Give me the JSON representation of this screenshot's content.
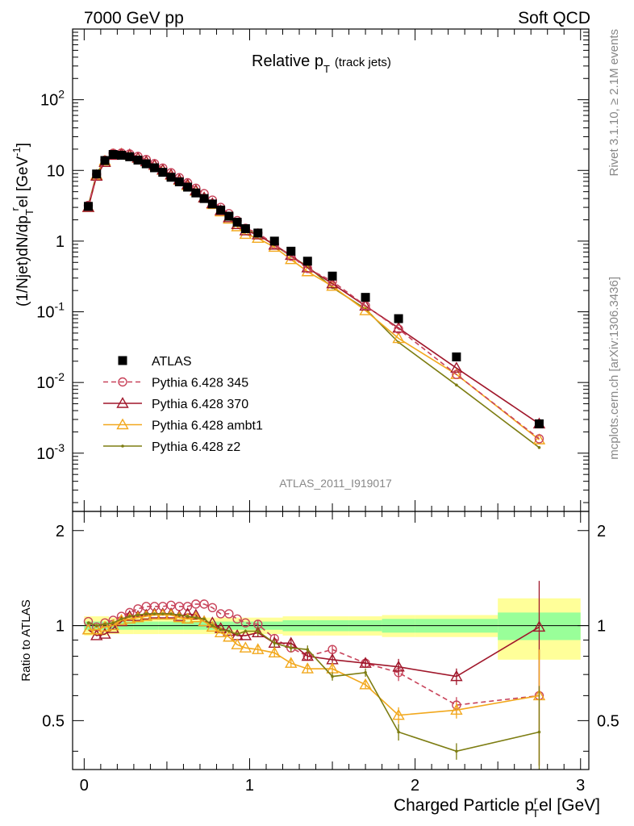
{
  "header": {
    "left": "7000 GeV pp",
    "right": "Soft QCD"
  },
  "side_text": {
    "rivet": "Rivet 3.1.10, ≥ 2.1M events",
    "mcplots": "mcplots.cern.ch [arXiv:1306.3436]"
  },
  "chart_data": [
    {
      "type": "scatter",
      "panel": "main",
      "title": "Relative p_T (track jets)",
      "title_main": "Relative p",
      "title_sub": "T",
      "title_extra": "(track jets)",
      "watermark": "ATLAS_2011_I919017",
      "ylabel": "(1/Njet)dN/dp_T^rel [GeV^-1]",
      "ylabel_parts": {
        "a": "(1/Njet)dN/dp",
        "sub": "T",
        "sup": "r",
        "b": "el [GeV",
        "sup2": "-1",
        "c": "]"
      },
      "xlim": [
        -0.07,
        3.05
      ],
      "ylim": [
        0.00015,
        1000
      ],
      "log_y": true,
      "grid": false,
      "legend_position": "bottom-left",
      "xticks": [
        0,
        1,
        2,
        3
      ],
      "yticks": [
        {
          "value": 0.001,
          "base": "10",
          "exp": "-3"
        },
        {
          "value": 0.01,
          "base": "10",
          "exp": "-2"
        },
        {
          "value": 0.1,
          "base": "10",
          "exp": "-1"
        },
        {
          "value": 1,
          "base": "1",
          "exp": ""
        },
        {
          "value": 10,
          "base": "10",
          "exp": ""
        },
        {
          "value": 100,
          "base": "10",
          "exp": "2"
        }
      ],
      "series": [
        {
          "name": "ATLAS",
          "color": "#000000",
          "marker": "square",
          "line": "none",
          "x": [
            0.025,
            0.075,
            0.125,
            0.175,
            0.225,
            0.275,
            0.325,
            0.375,
            0.425,
            0.475,
            0.525,
            0.575,
            0.625,
            0.675,
            0.725,
            0.775,
            0.825,
            0.875,
            0.925,
            0.975,
            1.05,
            1.15,
            1.25,
            1.35,
            1.5,
            1.7,
            1.9,
            2.25,
            2.75
          ],
          "y": [
            3.1,
            8.9,
            13.8,
            16.8,
            16.4,
            15.6,
            14.0,
            12.4,
            10.9,
            9.4,
            8.0,
            6.9,
            5.8,
            4.8,
            4.0,
            3.35,
            2.75,
            2.25,
            1.85,
            1.5,
            1.3,
            1.0,
            0.72,
            0.52,
            0.32,
            0.16,
            0.08,
            0.023,
            0.0026
          ]
        },
        {
          "name": "Pythia 6.428 345",
          "color": "#c8435a",
          "marker": "circle",
          "line": "dashed",
          "x": [
            0.025,
            0.075,
            0.125,
            0.175,
            0.225,
            0.275,
            0.325,
            0.375,
            0.425,
            0.475,
            0.525,
            0.575,
            0.625,
            0.675,
            0.725,
            0.775,
            0.825,
            0.875,
            0.925,
            0.975,
            1.05,
            1.15,
            1.25,
            1.35,
            1.5,
            1.7,
            1.9,
            2.25,
            2.75
          ],
          "y": [
            3.2,
            8.8,
            14.0,
            17.5,
            17.6,
            17.1,
            15.8,
            14.3,
            12.5,
            10.8,
            9.3,
            7.9,
            6.7,
            5.6,
            4.7,
            3.8,
            3.0,
            2.45,
            1.95,
            1.52,
            1.3,
            0.9,
            0.61,
            0.41,
            0.27,
            0.122,
            0.057,
            0.013,
            0.0016
          ]
        },
        {
          "name": "Pythia 6.428 370",
          "color": "#a0172b",
          "marker": "triangle-open",
          "line": "solid",
          "x": [
            0.025,
            0.075,
            0.125,
            0.175,
            0.225,
            0.275,
            0.325,
            0.375,
            0.425,
            0.475,
            0.525,
            0.575,
            0.625,
            0.675,
            0.725,
            0.775,
            0.825,
            0.875,
            0.925,
            0.975,
            1.05,
            1.15,
            1.25,
            1.35,
            1.5,
            1.7,
            1.9,
            2.25,
            2.75
          ],
          "y": [
            3.0,
            8.3,
            13.0,
            16.4,
            16.9,
            16.7,
            15.0,
            13.4,
            11.9,
            10.2,
            8.7,
            7.4,
            6.3,
            5.2,
            4.1,
            3.4,
            2.7,
            2.15,
            1.72,
            1.4,
            1.23,
            0.88,
            0.63,
            0.42,
            0.25,
            0.121,
            0.059,
            0.016,
            0.0026
          ]
        },
        {
          "name": "Pythia 6.428 ambt1",
          "color": "#f2a81d",
          "marker": "triangle-open",
          "line": "solid",
          "x": [
            0.025,
            0.075,
            0.125,
            0.175,
            0.225,
            0.275,
            0.325,
            0.375,
            0.425,
            0.475,
            0.525,
            0.575,
            0.625,
            0.675,
            0.725,
            0.775,
            0.825,
            0.875,
            0.925,
            0.975,
            1.05,
            1.15,
            1.25,
            1.35,
            1.5,
            1.7,
            1.9,
            2.25,
            2.75
          ],
          "y": [
            3.0,
            8.6,
            13.6,
            16.8,
            17.1,
            16.4,
            14.9,
            13.3,
            11.8,
            10.1,
            8.6,
            7.3,
            6.1,
            5.1,
            4.1,
            3.3,
            2.6,
            2.05,
            1.6,
            1.25,
            1.1,
            0.82,
            0.55,
            0.37,
            0.23,
            0.104,
            0.042,
            0.013,
            0.00155
          ]
        },
        {
          "name": "Pythia 6.428 z2",
          "color": "#7d7d12",
          "marker": "dot",
          "line": "solid",
          "x": [
            0.025,
            0.075,
            0.125,
            0.175,
            0.225,
            0.275,
            0.325,
            0.375,
            0.425,
            0.475,
            0.525,
            0.575,
            0.625,
            0.675,
            0.725,
            0.775,
            0.825,
            0.875,
            0.925,
            0.975,
            1.05,
            1.15,
            1.25,
            1.35,
            1.5,
            1.7,
            1.9,
            2.25,
            2.75
          ],
          "y": [
            3.2,
            8.9,
            14.0,
            17.3,
            17.2,
            16.6,
            15.2,
            13.5,
            11.9,
            10.2,
            8.7,
            7.4,
            6.2,
            5.1,
            4.2,
            3.4,
            2.7,
            2.15,
            1.75,
            1.45,
            1.25,
            0.88,
            0.61,
            0.44,
            0.22,
            0.11,
            0.037,
            0.0092,
            0.0012
          ]
        }
      ]
    },
    {
      "type": "line",
      "panel": "ratio",
      "ylabel": "Ratio to ATLAS",
      "xlabel": "Charged Particle p_T^rel [GeV]",
      "xlabel_parts": {
        "a": "Charged Particle p",
        "sup": "r",
        "sub": "T",
        "b": "el [GeV]"
      },
      "xlim": [
        -0.07,
        3.05
      ],
      "ylim": [
        0.35,
        2.3
      ],
      "log_y": true,
      "grid": false,
      "xticks": [
        0,
        1,
        2,
        3
      ],
      "yticks": [
        {
          "value": 0.5,
          "label": "0.5"
        },
        {
          "value": 1,
          "label": "1"
        },
        {
          "value": 2,
          "label": "2"
        }
      ],
      "bands": {
        "edges": [
          0,
          0.15,
          0.3,
          0.45,
          0.6,
          0.8,
          1.0,
          1.2,
          1.4,
          1.6,
          1.8,
          2.0,
          2.5,
          3.0
        ],
        "yellow": [
          0.07,
          0.06,
          0.06,
          0.06,
          0.06,
          0.06,
          0.06,
          0.07,
          0.07,
          0.07,
          0.08,
          0.08,
          0.22
        ],
        "green": [
          0.03,
          0.03,
          0.03,
          0.03,
          0.03,
          0.03,
          0.03,
          0.04,
          0.04,
          0.04,
          0.05,
          0.05,
          0.1
        ]
      },
      "series": [
        {
          "name": "Pythia 6.428 345",
          "x": [
            0.025,
            0.075,
            0.125,
            0.175,
            0.225,
            0.275,
            0.325,
            0.375,
            0.425,
            0.475,
            0.525,
            0.575,
            0.625,
            0.675,
            0.725,
            0.775,
            0.825,
            0.875,
            0.925,
            0.975,
            1.05,
            1.15,
            1.25,
            1.35,
            1.5,
            1.7,
            1.9,
            2.25,
            2.75
          ],
          "y": [
            1.03,
            0.99,
            1.02,
            1.04,
            1.07,
            1.1,
            1.13,
            1.15,
            1.15,
            1.15,
            1.16,
            1.15,
            1.15,
            1.17,
            1.17,
            1.14,
            1.09,
            1.09,
            1.05,
            1.02,
            1.01,
            0.91,
            0.85,
            0.8,
            0.84,
            0.76,
            0.71,
            0.56,
            0.6
          ]
        },
        {
          "name": "Pythia 6.428 370",
          "x": [
            0.025,
            0.075,
            0.125,
            0.175,
            0.225,
            0.275,
            0.325,
            0.375,
            0.425,
            0.475,
            0.525,
            0.575,
            0.625,
            0.675,
            0.725,
            0.775,
            0.825,
            0.875,
            0.925,
            0.975,
            1.05,
            1.15,
            1.25,
            1.35,
            1.5,
            1.7,
            1.9,
            2.25,
            2.75
          ],
          "y": [
            0.97,
            0.93,
            0.94,
            0.98,
            1.03,
            1.07,
            1.07,
            1.08,
            1.09,
            1.09,
            1.09,
            1.07,
            1.09,
            1.08,
            1.03,
            1.02,
            0.98,
            0.96,
            0.93,
            0.93,
            0.95,
            0.88,
            0.88,
            0.8,
            0.78,
            0.76,
            0.74,
            0.69,
            0.99
          ]
        },
        {
          "name": "Pythia 6.428 ambt1",
          "x": [
            0.025,
            0.075,
            0.125,
            0.175,
            0.225,
            0.275,
            0.325,
            0.375,
            0.425,
            0.475,
            0.525,
            0.575,
            0.625,
            0.675,
            0.725,
            0.775,
            0.825,
            0.875,
            0.925,
            0.975,
            1.05,
            1.15,
            1.25,
            1.35,
            1.5,
            1.7,
            1.9,
            2.25,
            2.75
          ],
          "y": [
            0.97,
            0.97,
            0.99,
            1.0,
            1.04,
            1.05,
            1.06,
            1.07,
            1.08,
            1.08,
            1.08,
            1.06,
            1.05,
            1.06,
            1.03,
            0.99,
            0.95,
            0.92,
            0.87,
            0.85,
            0.84,
            0.82,
            0.76,
            0.73,
            0.73,
            0.65,
            0.52,
            0.54,
            0.6
          ]
        },
        {
          "name": "Pythia 6.428 z2",
          "x": [
            0.025,
            0.075,
            0.125,
            0.175,
            0.225,
            0.275,
            0.325,
            0.375,
            0.425,
            0.475,
            0.525,
            0.575,
            0.625,
            0.675,
            0.725,
            0.775,
            0.825,
            0.875,
            0.925,
            0.975,
            1.05,
            1.15,
            1.25,
            1.35,
            1.5,
            1.7,
            1.9,
            2.25,
            2.75
          ],
          "y": [
            1.02,
            1.0,
            1.01,
            1.02,
            1.05,
            1.07,
            1.08,
            1.09,
            1.09,
            1.09,
            1.09,
            1.08,
            1.07,
            1.06,
            1.05,
            1.0,
            0.97,
            0.96,
            0.94,
            0.96,
            0.96,
            0.88,
            0.85,
            0.84,
            0.69,
            0.71,
            0.46,
            0.4,
            0.46
          ]
        }
      ]
    }
  ]
}
